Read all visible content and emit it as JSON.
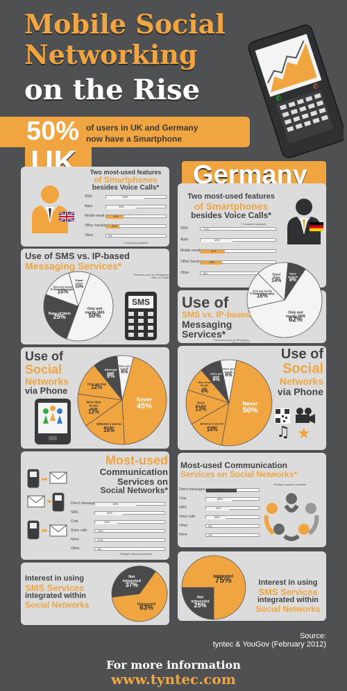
{
  "colors": {
    "orange": "#f0a540",
    "dark_slice": "#4a4a4a",
    "light_slice": "#f4f4f4",
    "mid_slice": "#d8d8d8",
    "bg": "#4f5052",
    "panel": "#dcdcdc"
  },
  "title": {
    "line1": "Mobile Social",
    "line2": "Networking",
    "line3": "on the Rise"
  },
  "headline": {
    "percent": "50%",
    "text_line1": "of users in UK and Germany",
    "text_line2": "now have a Smartphone"
  },
  "uk": {
    "label": "UK"
  },
  "germany": {
    "label": "Germany"
  },
  "features_uk": {
    "title1": "Two most-used features",
    "title2": "of Smartphones",
    "title3": "besides Voice Calls*",
    "footnote": "*2 answers possible"
  },
  "features_de": {
    "title1": "Two most-used features",
    "title2": "of Smartphones",
    "title3": "besides Voice Calls*",
    "footnote": "*2 answers possible"
  },
  "sms_uk": {
    "title1": "Use of SMS vs. IP-based",
    "title2": "Messaging Services*",
    "footnote1": "*Services such as WhatsApp,",
    "footnote2": "Viber or Pinger",
    "icon_text": "SMS"
  },
  "sms_de": {
    "title1": "Use of",
    "title2": "SMS vs. IP-based",
    "title3": "Messaging",
    "title4": "Services*",
    "footnote1": "*Services such as WhatsApp,",
    "footnote2": "Viber or Pinger"
  },
  "social_uk": {
    "title1": "Use of",
    "title2": "Social",
    "title3": "Networks",
    "title4": "via Phone"
  },
  "social_de": {
    "title1": "Use of",
    "title2": "Social",
    "title3": "Networks",
    "title4": "via Phone"
  },
  "comm_uk": {
    "title1": "Most-used",
    "title2": "Communication",
    "title3": "Services on",
    "title4": "Social Networks*",
    "footnote": "*Multiple answers possible"
  },
  "comm_de": {
    "title1": "Most-used Communication",
    "title2": "Services on Social Networks*",
    "footnote": "*Multiple answers possible"
  },
  "interest_uk": {
    "title1": "Interest in using",
    "title2": "SMS Services",
    "title3": "integrated within",
    "title4": "Social Networks"
  },
  "interest_de": {
    "title1": "Interest in using",
    "title2": "SMS Services",
    "title3": "integrated within",
    "title4": "Social Networks"
  },
  "source": {
    "label": "Source:",
    "text": "tyntec & YouGov (February 2012)"
  },
  "footer": {
    "line1": "For more information",
    "line2": "www.tyntec.com"
  },
  "chart_data": [
    {
      "id": "uk_features",
      "type": "bar",
      "categories": [
        "SMS",
        "Apps",
        "Mobile email",
        "Office functions",
        "Other"
      ],
      "values": [
        62,
        48,
        28,
        22,
        null
      ],
      "value_labels": [
        "62%",
        "48%",
        "28%",
        "22%",
        "3%"
      ],
      "xlim": [
        0,
        100
      ]
    },
    {
      "id": "de_features",
      "type": "bar",
      "categories": [
        "SMS",
        "Apps",
        "Mobile email",
        "Office functions",
        "Other"
      ],
      "values": [
        null,
        42,
        32,
        28,
        null
      ],
      "value_labels": [
        "71%",
        "42%",
        "32%",
        "28%",
        "6%"
      ],
      "xlim": [
        0,
        100
      ]
    },
    {
      "id": "uk_sms",
      "type": "pie",
      "categories": [
        "Only and mostly SMS",
        "None of them",
        "Only and mostly IP-Based Messaging",
        "Equal share"
      ],
      "values": [
        50,
        25,
        15,
        10
      ]
    },
    {
      "id": "de_sms",
      "type": "pie",
      "categories": [
        "Only and mostly SMS",
        "Only and mostly IP-Based Messaging",
        "Equal share",
        "None of them"
      ],
      "values": [
        62,
        16,
        14,
        8
      ]
    },
    {
      "id": "uk_social",
      "type": "pie",
      "categories": [
        "Never",
        "Between 2 and 5x per day",
        "More than 5x per day",
        "Once per day",
        "Once per week",
        "Once per month"
      ],
      "values": [
        45,
        16,
        12,
        12,
        9,
        6
      ]
    },
    {
      "id": "de_social",
      "type": "pie",
      "categories": [
        "Never",
        "Between 2 and 5x per day",
        "Once per day",
        "More than 5x per day",
        "Once per week",
        "Once per month"
      ],
      "values": [
        50,
        14,
        13,
        9,
        8,
        6
      ]
    },
    {
      "id": "uk_comm",
      "type": "bar",
      "categories": [
        "Direct messages",
        "SMS",
        "Chat",
        "Voice calls",
        "None",
        "Other"
      ],
      "values": [
        58,
        39,
        31,
        null,
        null,
        null
      ],
      "value_labels": [
        "58%",
        "39%",
        "31%",
        "19%",
        "11%",
        "8%"
      ],
      "xlim": [
        0,
        100
      ]
    },
    {
      "id": "de_comm",
      "type": "bar",
      "categories": [
        "Direct messages",
        "Chat",
        "SMS",
        "Voice calls",
        "Other",
        "None"
      ],
      "values": [
        56,
        48,
        42,
        36,
        null,
        null
      ],
      "value_labels": [
        "56%",
        "48%",
        "42%",
        "36%",
        "3%",
        "2%"
      ],
      "xlim": [
        0,
        100
      ]
    },
    {
      "id": "uk_interest",
      "type": "pie",
      "categories": [
        "Interested",
        "Not interested"
      ],
      "values": [
        63,
        37
      ]
    },
    {
      "id": "de_interest",
      "type": "pie",
      "categories": [
        "Interested",
        "Not interested"
      ],
      "values": [
        75,
        25
      ]
    }
  ]
}
